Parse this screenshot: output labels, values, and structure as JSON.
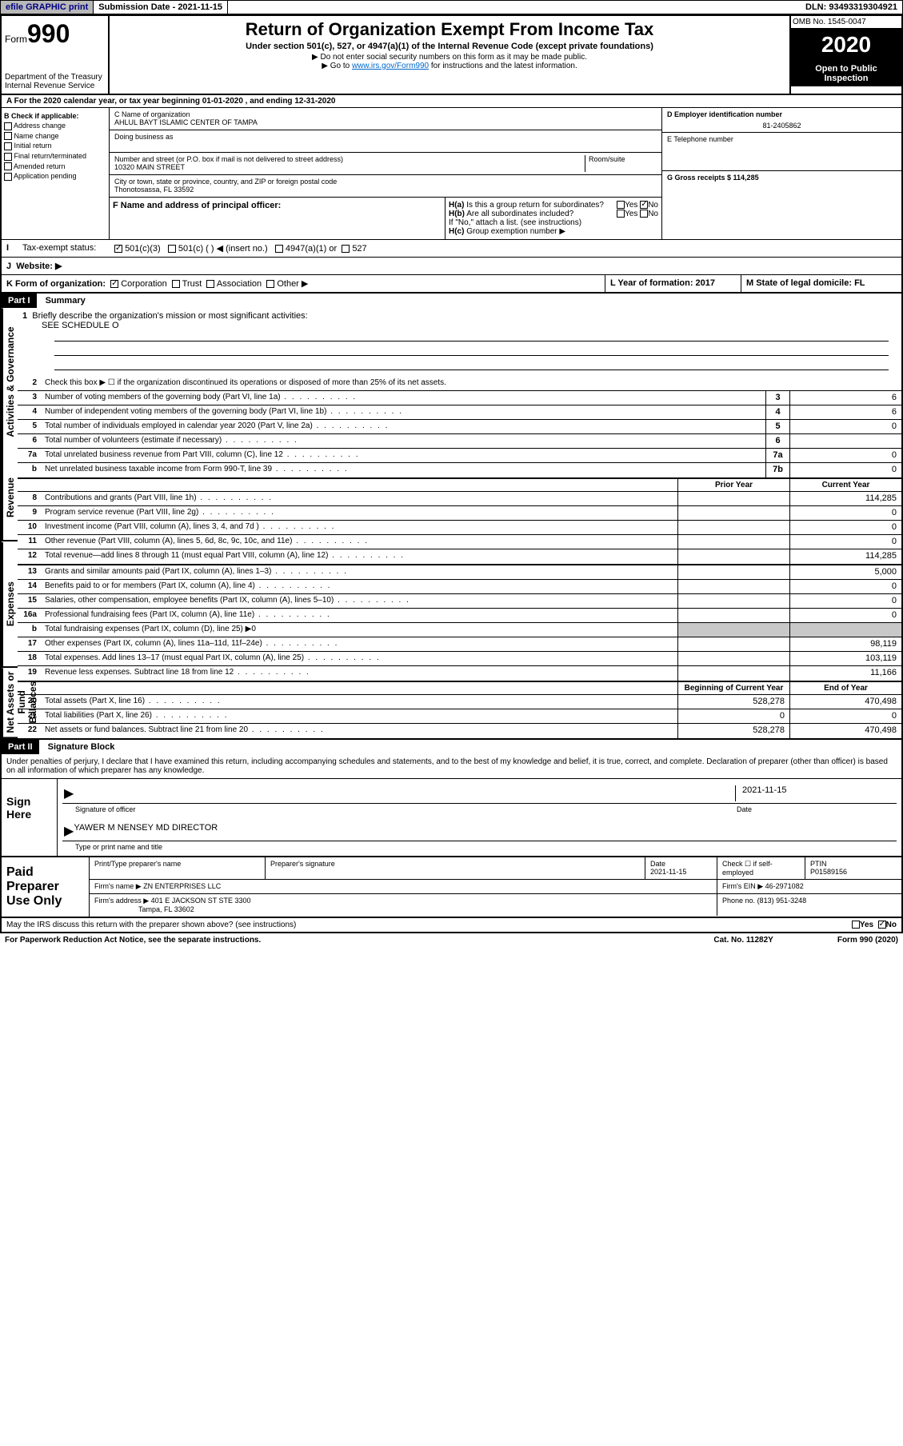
{
  "topbar": {
    "efile": "efile GRAPHIC print",
    "submission": "Submission Date - 2021-11-15",
    "dln": "DLN: 93493319304921"
  },
  "header": {
    "form_label": "Form",
    "form_num": "990",
    "dept": "Department of the Treasury",
    "irs": "Internal Revenue Service",
    "title": "Return of Organization Exempt From Income Tax",
    "subtitle": "Under section 501(c), 527, or 4947(a)(1) of the Internal Revenue Code (except private foundations)",
    "instr1": "▶ Do not enter social security numbers on this form as it may be made public.",
    "instr2_pre": "▶ Go to ",
    "instr2_link": "www.irs.gov/Form990",
    "instr2_post": " for instructions and the latest information.",
    "omb": "OMB No. 1545-0047",
    "year": "2020",
    "inspection1": "Open to Public",
    "inspection2": "Inspection"
  },
  "rowA": {
    "text": "A For the 2020 calendar year, or tax year beginning 01-01-2020   , and ending 12-31-2020"
  },
  "sectionB": {
    "label": "B Check if applicable:",
    "items": [
      "Address change",
      "Name change",
      "Initial return",
      "Final return/terminated",
      "Amended return",
      "Application pending"
    ]
  },
  "sectionC": {
    "name_label": "C Name of organization",
    "name": "AHLUL BAYT ISLAMIC CENTER OF TAMPA",
    "dba_label": "Doing business as",
    "street_label": "Number and street (or P.O. box if mail is not delivered to street address)",
    "room_label": "Room/suite",
    "street": "10320 MAIN STREET",
    "city_label": "City or town, state or province, country, and ZIP or foreign postal code",
    "city": "Thonotosassa, FL  33592"
  },
  "sectionD": {
    "label": "D Employer identification number",
    "value": "81-2405862"
  },
  "sectionE": {
    "label": "E Telephone number"
  },
  "sectionG": {
    "label": "G Gross receipts $ 114,285"
  },
  "sectionF": {
    "label": "F  Name and address of principal officer:"
  },
  "sectionH": {
    "ha_label": "H(a)",
    "ha_text": "Is this a group return for subordinates?",
    "hb_label": "H(b)",
    "hb_text": "Are all subordinates included?",
    "hb_note": "If \"No,\" attach a list. (see instructions)",
    "hc_label": "H(c)",
    "hc_text": "Group exemption number ▶",
    "yes": "Yes",
    "no": "No"
  },
  "sectionI": {
    "label": "I",
    "text": "Tax-exempt status:",
    "opt1": "501(c)(3)",
    "opt2": "501(c) (  ) ◀ (insert no.)",
    "opt3": "4947(a)(1) or",
    "opt4": "527"
  },
  "sectionJ": {
    "label": "J",
    "text": "Website: ▶"
  },
  "sectionK": {
    "label": "K Form of organization:",
    "opts": [
      "Corporation",
      "Trust",
      "Association",
      "Other ▶"
    ]
  },
  "sectionL": {
    "label": "L Year of formation: 2017"
  },
  "sectionM": {
    "label": "M State of legal domicile: FL"
  },
  "part1": {
    "header": "Part I",
    "title": "Summary",
    "vlabels": {
      "gov": "Activities & Governance",
      "rev": "Revenue",
      "exp": "Expenses",
      "net": "Net Assets or Fund Balances"
    },
    "line1": "Briefly describe the organization's mission or most significant activities:",
    "line1_val": "SEE SCHEDULE O",
    "line2": "Check this box ▶ ☐  if the organization discontinued its operations or disposed of more than 25% of its net assets.",
    "lines_gov": [
      {
        "n": "3",
        "t": "Number of voting members of the governing body (Part VI, line 1a)",
        "c": "3",
        "v": "6"
      },
      {
        "n": "4",
        "t": "Number of independent voting members of the governing body (Part VI, line 1b)",
        "c": "4",
        "v": "6"
      },
      {
        "n": "5",
        "t": "Total number of individuals employed in calendar year 2020 (Part V, line 2a)",
        "c": "5",
        "v": "0"
      },
      {
        "n": "6",
        "t": "Total number of volunteers (estimate if necessary)",
        "c": "6",
        "v": ""
      },
      {
        "n": "7a",
        "t": "Total unrelated business revenue from Part VIII, column (C), line 12",
        "c": "7a",
        "v": "0"
      },
      {
        "n": "b",
        "t": "Net unrelated business taxable income from Form 990-T, line 39",
        "c": "7b",
        "v": "0"
      }
    ],
    "col_prior": "Prior Year",
    "col_current": "Current Year",
    "col_begin": "Beginning of Current Year",
    "col_end": "End of Year",
    "lines_rev": [
      {
        "n": "8",
        "t": "Contributions and grants (Part VIII, line 1h)",
        "p": "",
        "c": "114,285"
      },
      {
        "n": "9",
        "t": "Program service revenue (Part VIII, line 2g)",
        "p": "",
        "c": "0"
      },
      {
        "n": "10",
        "t": "Investment income (Part VIII, column (A), lines 3, 4, and 7d )",
        "p": "",
        "c": "0"
      },
      {
        "n": "11",
        "t": "Other revenue (Part VIII, column (A), lines 5, 6d, 8c, 9c, 10c, and 11e)",
        "p": "",
        "c": "0"
      },
      {
        "n": "12",
        "t": "Total revenue—add lines 8 through 11 (must equal Part VIII, column (A), line 12)",
        "p": "",
        "c": "114,285"
      }
    ],
    "lines_exp": [
      {
        "n": "13",
        "t": "Grants and similar amounts paid (Part IX, column (A), lines 1–3)",
        "p": "",
        "c": "5,000"
      },
      {
        "n": "14",
        "t": "Benefits paid to or for members (Part IX, column (A), line 4)",
        "p": "",
        "c": "0"
      },
      {
        "n": "15",
        "t": "Salaries, other compensation, employee benefits (Part IX, column (A), lines 5–10)",
        "p": "",
        "c": "0"
      },
      {
        "n": "16a",
        "t": "Professional fundraising fees (Part IX, column (A), line 11e)",
        "p": "",
        "c": "0"
      },
      {
        "n": "b",
        "t": "Total fundraising expenses (Part IX, column (D), line 25) ▶0",
        "gray": true
      },
      {
        "n": "17",
        "t": "Other expenses (Part IX, column (A), lines 11a–11d, 11f–24e)",
        "p": "",
        "c": "98,119"
      },
      {
        "n": "18",
        "t": "Total expenses. Add lines 13–17 (must equal Part IX, column (A), line 25)",
        "p": "",
        "c": "103,119"
      },
      {
        "n": "19",
        "t": "Revenue less expenses. Subtract line 18 from line 12",
        "p": "",
        "c": "11,166"
      }
    ],
    "lines_net": [
      {
        "n": "20",
        "t": "Total assets (Part X, line 16)",
        "p": "528,278",
        "c": "470,498"
      },
      {
        "n": "21",
        "t": "Total liabilities (Part X, line 26)",
        "p": "0",
        "c": "0"
      },
      {
        "n": "22",
        "t": "Net assets or fund balances. Subtract line 21 from line 20",
        "p": "528,278",
        "c": "470,498"
      }
    ]
  },
  "part2": {
    "header": "Part II",
    "title": "Signature Block",
    "penalties": "Under penalties of perjury, I declare that I have examined this return, including accompanying schedules and statements, and to the best of my knowledge and belief, it is true, correct, and complete. Declaration of preparer (other than officer) is based on all information of which preparer has any knowledge."
  },
  "sign": {
    "label": "Sign Here",
    "sig_label": "Signature of officer",
    "date_label": "Date",
    "date": "2021-11-15",
    "name": "YAWER M NENSEY MD  DIRECTOR",
    "name_label": "Type or print name and title"
  },
  "preparer": {
    "label": "Paid Preparer Use Only",
    "print_label": "Print/Type preparer's name",
    "sig_label": "Preparer's signature",
    "date_label": "Date",
    "date": "2021-11-15",
    "check_label": "Check ☐ if self-employed",
    "ptin_label": "PTIN",
    "ptin": "P01589156",
    "firm_name_label": "Firm's name    ▶",
    "firm_name": "ZN ENTERPRISES LLC",
    "firm_ein_label": "Firm's EIN ▶",
    "firm_ein": "46-2971082",
    "firm_addr_label": "Firm's address ▶",
    "firm_addr1": "401 E JACKSON ST STE 3300",
    "firm_addr2": "Tampa, FL  33602",
    "phone_label": "Phone no.",
    "phone": "(813) 951-3248"
  },
  "footer": {
    "discuss": "May the IRS discuss this return with the preparer shown above? (see instructions)",
    "paperwork": "For Paperwork Reduction Act Notice, see the separate instructions.",
    "cat": "Cat. No. 11282Y",
    "form": "Form 990 (2020)"
  }
}
